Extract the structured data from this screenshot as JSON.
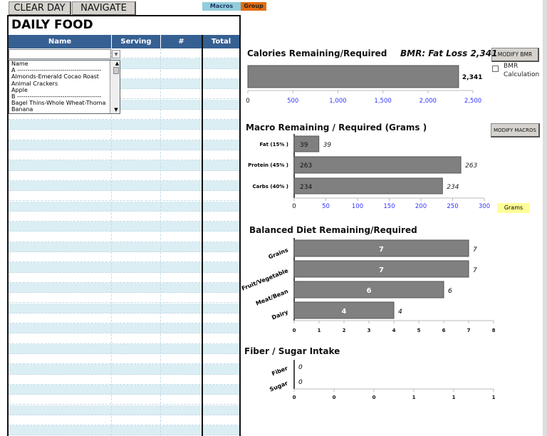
{
  "toolbar": {
    "clear_day": "CLEAR DAY",
    "navigate": "NAVIGATE",
    "macros_tag": "Macros",
    "group_tag": "Group"
  },
  "colors": {
    "header": "#366092",
    "row_alt": "#dbeef4",
    "bar": "#808080",
    "macros_tag": "#92cddc",
    "group_tag": "#e46c0a",
    "grams_tag": "#ffff99",
    "axis_label": "#3333ff"
  },
  "table": {
    "title": "DAILY FOOD",
    "columns": [
      "Name",
      "Serving Size",
      "# Servings",
      "Total Cals"
    ]
  },
  "dropdown": {
    "value": "",
    "options": [
      "Name",
      "A -----------------------------------------",
      "Almonds-Emerald Cocao Roast",
      "Animal Crackers",
      "Apple",
      "B -----------------------------------------",
      "Bagel Thins-Whole Wheat-Thoma",
      "Banana"
    ]
  },
  "side": {
    "modify_bmr": "MODIFY BMR",
    "bmr_checkbox_label": "BMR Calculation",
    "bmr_checked": false,
    "modify_macros": "MODIFY MACROS",
    "grams_label": "Grams"
  },
  "chart_data": [
    {
      "type": "bar",
      "orientation": "horizontal",
      "title": "Calories Remaining/Required",
      "subtitle": "BMR: Fat Loss 2,341",
      "categories": [
        ""
      ],
      "values": [
        2341
      ],
      "value_labels": [
        "2,341"
      ],
      "xlim": [
        0,
        2500
      ],
      "ticks": [
        "0",
        "500",
        "1,000",
        "1,500",
        "2,000",
        "2,500"
      ]
    },
    {
      "type": "bar",
      "orientation": "horizontal",
      "title": "Macro Remaining / Required (Grams )",
      "categories": [
        "Fat (15% )",
        "Protein (45% )",
        "Carbs (40% )"
      ],
      "values": [
        39,
        263,
        234
      ],
      "xlim": [
        0,
        300
      ],
      "ticks": [
        "0",
        "50",
        "100",
        "150",
        "200",
        "250",
        "300"
      ]
    },
    {
      "type": "bar",
      "orientation": "horizontal",
      "title": "Balanced Diet Remaining/Required",
      "categories": [
        "Grains",
        "Fruit/Vegetable",
        "Meat/Bean",
        "Dairy"
      ],
      "values": [
        7,
        7,
        6,
        4
      ],
      "xlim": [
        0,
        8
      ],
      "ticks": [
        "0",
        "1",
        "2",
        "3",
        "4",
        "5",
        "6",
        "7",
        "8"
      ]
    },
    {
      "type": "bar",
      "orientation": "horizontal",
      "title": "Fiber / Sugar Intake",
      "categories": [
        "Fiber",
        "Sugar"
      ],
      "values": [
        0,
        0
      ],
      "ticks": [
        "0",
        "0",
        "0",
        "1",
        "1",
        "1"
      ]
    }
  ]
}
